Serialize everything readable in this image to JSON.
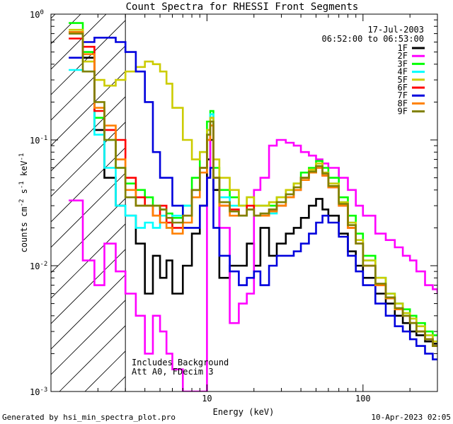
{
  "chart_data": {
    "type": "line",
    "title": "Count Spectra for RHESSI Front Segments",
    "xlabel": "Energy (keV)",
    "ylabel_text": "counts cm",
    "ylabel_sup1": "-2",
    "ylabel_mid": " s",
    "ylabel_sup2": "-1",
    "ylabel_end": " keV",
    "ylabel_sup3": "-1",
    "x_scale": "log",
    "y_scale": "log",
    "xlim": [
      1.0,
      300
    ],
    "ylim": [
      0.001,
      1.0
    ],
    "x_ticks": [
      {
        "v": 10,
        "label": "10"
      },
      {
        "v": 100,
        "label": "100"
      }
    ],
    "y_ticks": [
      {
        "v": 1.0,
        "base": "10",
        "exp": "0"
      },
      {
        "v": 0.1,
        "base": "10",
        "exp": "-1"
      },
      {
        "v": 0.01,
        "base": "10",
        "exp": "-2"
      },
      {
        "v": 0.001,
        "base": "10",
        "exp": "-3"
      }
    ],
    "date": "17-Jul-2003",
    "time_range": "06:52:00 to 06:53:00",
    "hatch_limit_keV": 3,
    "annotation_lines": [
      "Includes Background",
      "Att A0, FDecim 3"
    ],
    "footer_left": "Generated by hsi_min_spectra_plot.pro",
    "footer_right": "10-Apr-2023 02:05",
    "series": [
      {
        "name": "1F",
        "color": "#000000",
        "x": [
          1.3,
          1.6,
          1.9,
          2.2,
          2.6,
          3,
          3.5,
          4,
          4.5,
          5,
          5.5,
          6,
          7,
          8,
          9,
          10,
          10.5,
          11,
          12,
          14,
          16,
          18,
          20,
          22,
          25,
          28,
          32,
          36,
          40,
          45,
          50,
          55,
          60,
          70,
          80,
          90,
          100,
          120,
          140,
          160,
          180,
          200,
          220,
          250,
          280
        ],
        "y": [
          0.72,
          0.45,
          0.12,
          0.05,
          0.03,
          0.025,
          0.015,
          0.006,
          0.012,
          0.008,
          0.011,
          0.006,
          0.01,
          0.018,
          0.03,
          0.07,
          0.1,
          0.04,
          0.008,
          0.01,
          0.01,
          0.015,
          0.01,
          0.02,
          0.012,
          0.015,
          0.018,
          0.02,
          0.024,
          0.03,
          0.034,
          0.028,
          0.025,
          0.018,
          0.013,
          0.01,
          0.008,
          0.006,
          0.005,
          0.004,
          0.0035,
          0.003,
          0.0028,
          0.0025,
          0.0024
        ]
      },
      {
        "name": "2F",
        "color": "#ff00ff",
        "x": [
          1.3,
          1.6,
          1.9,
          2.2,
          2.6,
          3,
          3.5,
          4,
          4.5,
          5,
          5.5,
          6,
          7,
          8,
          9,
          10,
          10.5,
          11,
          12,
          14,
          16,
          18,
          20,
          22,
          25,
          28,
          32,
          36,
          40,
          45,
          50,
          55,
          60,
          70,
          80,
          90,
          100,
          120,
          140,
          160,
          180,
          200,
          220,
          250,
          280,
          300
        ],
        "y": [
          0.033,
          0.011,
          0.007,
          0.015,
          0.009,
          0.006,
          0.004,
          0.002,
          0.004,
          0.003,
          0.002,
          0.0015,
          0.001,
          0.001,
          0.001,
          0.05,
          0.15,
          0.05,
          0.02,
          0.0035,
          0.005,
          0.006,
          0.04,
          0.05,
          0.09,
          0.1,
          0.095,
          0.09,
          0.08,
          0.075,
          0.07,
          0.065,
          0.06,
          0.05,
          0.04,
          0.03,
          0.025,
          0.018,
          0.016,
          0.014,
          0.012,
          0.011,
          0.009,
          0.007,
          0.0065,
          0.006
        ]
      },
      {
        "name": "3F",
        "color": "#00ff00",
        "x": [
          1.3,
          1.6,
          1.9,
          2.2,
          2.6,
          3,
          3.5,
          4,
          4.5,
          5,
          5.5,
          6,
          7,
          8,
          9,
          10,
          10.5,
          11,
          12,
          14,
          16,
          18,
          20,
          22,
          25,
          28,
          32,
          36,
          40,
          45,
          50,
          55,
          60,
          70,
          80,
          90,
          100,
          120,
          140,
          160,
          180,
          200,
          220,
          250,
          280
        ],
        "y": [
          0.85,
          0.5,
          0.15,
          0.1,
          0.06,
          0.045,
          0.04,
          0.035,
          0.03,
          0.028,
          0.026,
          0.024,
          0.03,
          0.05,
          0.08,
          0.14,
          0.17,
          0.06,
          0.04,
          0.035,
          0.03,
          0.035,
          0.03,
          0.03,
          0.03,
          0.035,
          0.04,
          0.045,
          0.055,
          0.06,
          0.068,
          0.06,
          0.05,
          0.035,
          0.025,
          0.018,
          0.012,
          0.008,
          0.006,
          0.005,
          0.0045,
          0.004,
          0.0035,
          0.003,
          0.0028
        ]
      },
      {
        "name": "4F",
        "color": "#00ffff",
        "x": [
          1.3,
          1.6,
          1.9,
          2.2,
          2.6,
          3,
          3.5,
          4,
          4.5,
          5,
          5.5,
          6,
          7,
          8,
          9,
          10,
          10.5,
          11,
          12,
          14,
          16,
          18,
          20,
          22,
          25,
          28,
          32,
          36,
          40,
          45,
          50,
          55,
          60,
          70,
          80,
          90,
          100,
          120,
          140,
          160,
          180,
          200,
          220,
          250,
          280
        ],
        "y": [
          0.36,
          0.35,
          0.11,
          0.06,
          0.03,
          0.025,
          0.02,
          0.022,
          0.02,
          0.025,
          0.02,
          0.025,
          0.03,
          0.04,
          0.06,
          0.12,
          0.16,
          0.05,
          0.035,
          0.03,
          0.03,
          0.028,
          0.025,
          0.025,
          0.026,
          0.03,
          0.035,
          0.04,
          0.05,
          0.055,
          0.062,
          0.055,
          0.045,
          0.032,
          0.022,
          0.016,
          0.011,
          0.008,
          0.006,
          0.005,
          0.0042,
          0.0038,
          0.0033,
          0.0028,
          0.0025
        ]
      },
      {
        "name": "5F",
        "color": "#cccc00",
        "x": [
          1.3,
          1.6,
          1.9,
          2.2,
          2.6,
          3,
          3.5,
          4,
          4.5,
          5,
          5.5,
          6,
          7,
          8,
          9,
          10,
          10.5,
          11,
          12,
          14,
          16,
          18,
          20,
          22,
          25,
          28,
          32,
          36,
          40,
          45,
          50,
          55,
          60,
          70,
          80,
          90,
          100,
          120,
          140,
          160,
          180,
          200,
          220,
          250,
          280
        ],
        "y": [
          0.75,
          0.42,
          0.3,
          0.27,
          0.3,
          0.35,
          0.38,
          0.42,
          0.4,
          0.35,
          0.28,
          0.18,
          0.1,
          0.07,
          0.08,
          0.12,
          0.15,
          0.07,
          0.05,
          0.04,
          0.03,
          0.035,
          0.03,
          0.03,
          0.032,
          0.035,
          0.04,
          0.045,
          0.05,
          0.058,
          0.065,
          0.055,
          0.045,
          0.032,
          0.022,
          0.016,
          0.011,
          0.008,
          0.006,
          0.005,
          0.0042,
          0.0038,
          0.0033,
          0.0028,
          0.0025
        ]
      },
      {
        "name": "6F",
        "color": "#ff0000",
        "x": [
          1.3,
          1.6,
          1.9,
          2.2,
          2.6,
          3,
          3.5,
          4,
          4.5,
          5,
          5.5,
          6,
          7,
          8,
          9,
          10,
          10.5,
          11,
          12,
          14,
          16,
          18,
          20,
          22,
          25,
          28,
          32,
          36,
          40,
          45,
          50,
          55,
          60,
          70,
          80,
          90,
          100,
          120,
          140,
          160,
          180,
          200,
          220,
          250,
          280
        ],
        "y": [
          0.64,
          0.55,
          0.17,
          0.12,
          0.1,
          0.05,
          0.035,
          0.03,
          0.025,
          0.03,
          0.022,
          0.02,
          0.025,
          0.04,
          0.06,
          0.1,
          0.13,
          0.05,
          0.03,
          0.028,
          0.025,
          0.03,
          0.025,
          0.025,
          0.028,
          0.03,
          0.035,
          0.04,
          0.05,
          0.055,
          0.06,
          0.052,
          0.042,
          0.03,
          0.02,
          0.015,
          0.01,
          0.007,
          0.0055,
          0.0045,
          0.004,
          0.0035,
          0.003,
          0.0026,
          0.0023
        ]
      },
      {
        "name": "7F",
        "color": "#0000dd",
        "x": [
          1.3,
          1.6,
          1.9,
          2.2,
          2.6,
          3,
          3.5,
          4,
          4.5,
          5,
          5.5,
          6,
          7,
          8,
          9,
          10,
          10.5,
          11,
          12,
          14,
          16,
          18,
          20,
          22,
          25,
          28,
          32,
          36,
          40,
          45,
          50,
          55,
          60,
          70,
          80,
          90,
          100,
          120,
          140,
          160,
          180,
          200,
          220,
          250,
          280
        ],
        "y": [
          0.45,
          0.6,
          0.65,
          0.65,
          0.6,
          0.5,
          0.35,
          0.2,
          0.08,
          0.05,
          0.05,
          0.03,
          0.02,
          0.02,
          0.03,
          0.05,
          0.06,
          0.02,
          0.012,
          0.009,
          0.007,
          0.008,
          0.009,
          0.007,
          0.01,
          0.012,
          0.012,
          0.013,
          0.015,
          0.018,
          0.022,
          0.025,
          0.022,
          0.017,
          0.012,
          0.009,
          0.007,
          0.005,
          0.004,
          0.0033,
          0.003,
          0.0026,
          0.0023,
          0.002,
          0.0018
        ]
      },
      {
        "name": "8F",
        "color": "#ff8000",
        "x": [
          1.3,
          1.6,
          1.9,
          2.2,
          2.6,
          3,
          3.5,
          4,
          4.5,
          5,
          5.5,
          6,
          7,
          8,
          9,
          10,
          10.5,
          11,
          12,
          14,
          16,
          18,
          20,
          22,
          25,
          28,
          32,
          36,
          40,
          45,
          50,
          55,
          60,
          70,
          80,
          90,
          100,
          120,
          140,
          160,
          180,
          200,
          220,
          250,
          280
        ],
        "y": [
          0.72,
          0.48,
          0.18,
          0.13,
          0.07,
          0.04,
          0.03,
          0.03,
          0.025,
          0.022,
          0.02,
          0.018,
          0.022,
          0.035,
          0.055,
          0.1,
          0.13,
          0.05,
          0.03,
          0.025,
          0.025,
          0.028,
          0.025,
          0.025,
          0.027,
          0.03,
          0.035,
          0.04,
          0.048,
          0.055,
          0.06,
          0.052,
          0.042,
          0.03,
          0.02,
          0.015,
          0.01,
          0.007,
          0.0055,
          0.0045,
          0.004,
          0.0035,
          0.003,
          0.0026,
          0.0023
        ]
      },
      {
        "name": "9F",
        "color": "#808000",
        "x": [
          1.3,
          1.6,
          1.9,
          2.2,
          2.6,
          3,
          3.5,
          4,
          4.5,
          5,
          5.5,
          6,
          7,
          8,
          9,
          10,
          10.5,
          11,
          12,
          14,
          16,
          18,
          20,
          22,
          25,
          28,
          32,
          36,
          40,
          45,
          50,
          55,
          60,
          70,
          80,
          90,
          100,
          120,
          140,
          160,
          180,
          200,
          220,
          250,
          280
        ],
        "y": [
          0.7,
          0.35,
          0.2,
          0.1,
          0.06,
          0.035,
          0.03,
          0.03,
          0.03,
          0.028,
          0.024,
          0.022,
          0.025,
          0.04,
          0.06,
          0.11,
          0.14,
          0.05,
          0.032,
          0.027,
          0.025,
          0.028,
          0.025,
          0.026,
          0.028,
          0.032,
          0.037,
          0.042,
          0.05,
          0.056,
          0.062,
          0.054,
          0.043,
          0.031,
          0.021,
          0.015,
          0.01,
          0.0072,
          0.0056,
          0.0046,
          0.004,
          0.0035,
          0.003,
          0.0026,
          0.0023
        ]
      }
    ]
  }
}
